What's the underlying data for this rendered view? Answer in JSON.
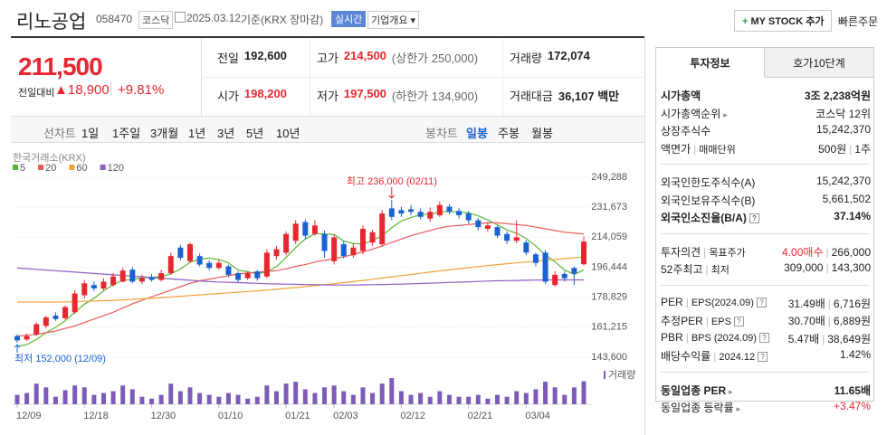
{
  "header": {
    "name": "리노공업",
    "code": "058470",
    "market": "코스닥",
    "date": "2025.03.12",
    "basis": "기준(KRX 장마감)",
    "realtime": "실시간",
    "company_info": "기업개요",
    "mystock": "MY STOCK 추가",
    "quick_order": "빠른주문"
  },
  "price": {
    "current": "211,500",
    "change_label": "전일대비",
    "change": "18,900",
    "change_rate": "+9.81%"
  },
  "quote": {
    "rows": [
      [
        {
          "label": "전일",
          "value": "192,600"
        },
        {
          "label": "고가",
          "value": "214,500",
          "note": "(상한가 250,000)",
          "red": true
        },
        {
          "label": "거래량",
          "value": "172,074"
        }
      ],
      [
        {
          "label": "시가",
          "value": "198,200",
          "red": true
        },
        {
          "label": "저가",
          "value": "197,500",
          "note": "(하한가 134,900)",
          "red": true
        },
        {
          "label": "거래대금",
          "value": "36,107 백만"
        }
      ]
    ]
  },
  "toolbar": {
    "line_chart": "선차트",
    "periods": [
      "1일",
      "1주일",
      "3개월",
      "1년",
      "3년",
      "5년",
      "10년"
    ],
    "candle_chart": "봉차트",
    "candle_periods": [
      "일봉",
      "주봉",
      "월봉"
    ]
  },
  "info_panel": {
    "tabs": [
      "투자정보",
      "호가10단계"
    ],
    "groups": [
      [
        {
          "label": [
            "시가총액"
          ],
          "value": [
            "3조 2,238억원"
          ],
          "bold": true
        },
        {
          "label": [
            "시가총액순위"
          ],
          "value": [
            "코스닥 12위"
          ],
          "link": true
        },
        {
          "label": [
            "상장주식수"
          ],
          "value": [
            "15,242,370"
          ]
        },
        {
          "label": [
            "액면가",
            "매매단위"
          ],
          "value": [
            "500원",
            "1주"
          ]
        }
      ],
      [
        {
          "label": [
            "외국인한도주식수(A)"
          ],
          "value": [
            "15,242,370"
          ]
        },
        {
          "label": [
            "외국인보유주식수(B)"
          ],
          "value": [
            "5,661,502"
          ]
        },
        {
          "label": [
            "외국인소진율(B/A)"
          ],
          "value": [
            "37.14%"
          ],
          "bold": true,
          "help": true
        }
      ],
      [
        {
          "label": [
            "투자의견",
            "목표주가"
          ],
          "value": [
            "4.00매수",
            "266,000"
          ],
          "red_first": true
        },
        {
          "label": [
            "52주최고",
            "최저"
          ],
          "value": [
            "309,000",
            "143,300"
          ]
        }
      ],
      [
        {
          "label": [
            "PER",
            "EPS(2024.09)"
          ],
          "value": [
            "31.49배",
            "6,716원"
          ],
          "help": true
        },
        {
          "label": [
            "추정PER",
            "EPS"
          ],
          "value": [
            "30.70배",
            "6,889원"
          ],
          "help": true
        },
        {
          "label": [
            "PBR",
            "BPS (2024.09)"
          ],
          "value": [
            "5.47배",
            "38,649원"
          ],
          "help": true
        },
        {
          "label": [
            "배당수익률",
            "2024.12"
          ],
          "value": [
            "1.42%"
          ],
          "help": true
        }
      ],
      [
        {
          "label": [
            "동일업종 PER"
          ],
          "value": [
            "11.65배"
          ],
          "bold": true,
          "link": true
        },
        {
          "label": [
            "동일업종 등락률"
          ],
          "value": [
            "+3.47%"
          ],
          "link": true,
          "red_first": true
        }
      ]
    ]
  },
  "chart_data": {
    "type": "candlestick",
    "source": "한국거래소(KRX)",
    "categories": [
      "12/09",
      null,
      null,
      null,
      null,
      null,
      null,
      "12/18",
      null,
      null,
      null,
      null,
      null,
      null,
      "12/30",
      null,
      null,
      null,
      null,
      null,
      null,
      "01/10",
      null,
      null,
      null,
      null,
      null,
      null,
      "01/21",
      null,
      null,
      null,
      null,
      "02/03",
      null,
      null,
      null,
      null,
      null,
      null,
      "02/12",
      null,
      null,
      null,
      null,
      null,
      null,
      "02/21",
      null,
      null,
      null,
      null,
      null,
      "03/04",
      null,
      null,
      null,
      null,
      null,
      null
    ],
    "open": [
      156000,
      154000,
      157000,
      162000,
      168000,
      166500,
      170000,
      180000,
      186000,
      184000,
      186000,
      188000,
      195000,
      188000,
      190500,
      189000,
      193000,
      208000,
      200000,
      203000,
      199000,
      196000,
      197000,
      193000,
      190000,
      194000,
      191000,
      203000,
      205000,
      212000,
      223000,
      216000,
      216000,
      200000,
      210000,
      203500,
      206000,
      211000,
      210000,
      231000,
      230000,
      230500,
      229000,
      225000,
      227000,
      232000,
      229500,
      228000,
      224000,
      219000,
      220000,
      216000,
      212000,
      211000,
      204000,
      205000,
      186000,
      192500,
      196000,
      198200
    ],
    "high": [
      157000,
      157500,
      164000,
      168000,
      170000,
      174000,
      183000,
      189000,
      188000,
      190000,
      193000,
      196000,
      196500,
      192000,
      192500,
      195000,
      205000,
      209500,
      211000,
      204500,
      200500,
      201000,
      198000,
      194000,
      194000,
      195000,
      207000,
      209000,
      217500,
      224000,
      224500,
      224000,
      218000,
      216000,
      212000,
      210500,
      221000,
      218500,
      230000,
      236000,
      232000,
      233000,
      231000,
      231500,
      235000,
      233500,
      231000,
      229500,
      225500,
      223000,
      221000,
      217500,
      224000,
      212500,
      205000,
      206500,
      194000,
      194000,
      197000,
      214500
    ],
    "low": [
      152000,
      153000,
      156000,
      160500,
      165000,
      165500,
      169000,
      178000,
      182500,
      183000,
      185000,
      187500,
      187000,
      186500,
      188000,
      188000,
      192000,
      200500,
      199000,
      197000,
      194500,
      195000,
      190500,
      187500,
      189000,
      188500,
      190000,
      201000,
      203500,
      210000,
      213000,
      215000,
      202000,
      198000,
      201500,
      202000,
      204000,
      209000,
      208500,
      224000,
      226000,
      227000,
      224500,
      223000,
      226000,
      227500,
      225000,
      222000,
      218000,
      217500,
      213500,
      210000,
      210500,
      203500,
      197000,
      186500,
      185000,
      188000,
      186000,
      197500
    ],
    "close": [
      153500,
      156000,
      163000,
      167000,
      166000,
      173000,
      181000,
      187000,
      184000,
      188000,
      191000,
      194500,
      188000,
      190000,
      189000,
      193000,
      203000,
      202000,
      210000,
      198000,
      196000,
      199000,
      192000,
      189000,
      193000,
      190000,
      205000,
      207000,
      216000,
      222000,
      215000,
      221000,
      206000,
      214000,
      203000,
      208000,
      219000,
      217000,
      228000,
      226000,
      228000,
      229000,
      226000,
      229000,
      233000,
      229000,
      227000,
      224000,
      220000,
      221000,
      215000,
      212000,
      214000,
      205000,
      199000,
      188000,
      192000,
      190000,
      192600,
      211500
    ],
    "up_color": "#e8262f",
    "down_color": "#1b62d1",
    "series": [
      {
        "name": "5",
        "color": "#5cb531",
        "values": [
          150000,
          151000,
          154000,
          158000,
          161100,
          165000,
          170000,
          174800,
          178200,
          182600,
          186200,
          188900,
          189100,
          190300,
          190500,
          190900,
          192600,
          195400,
          199400,
          201200,
          201800,
          201000,
          199000,
          194800,
          193800,
          192600,
          193800,
          196800,
          202200,
          208000,
          213000,
          216200,
          216000,
          215600,
          211800,
          210400,
          210000,
          212200,
          215000,
          219600,
          223600,
          225600,
          227400,
          227600,
          229000,
          229200,
          228800,
          228400,
          226600,
          224200,
          221400,
          218400,
          216400,
          213400,
          209000,
          203600,
          199600,
          194800,
          192300,
          194800
        ]
      },
      {
        "name": "20",
        "color": "#e85c5c",
        "values": [
          156000,
          156500,
          157000,
          158000,
          159000,
          160500,
          162000,
          164000,
          166000,
          168000,
          170000,
          172500,
          175000,
          177000,
          179000,
          181000,
          183000,
          185000,
          187000,
          188500,
          189500,
          190500,
          191500,
          192500,
          193000,
          193500,
          194000,
          194500,
          195500,
          197000,
          198000,
          199500,
          200500,
          201500,
          202500,
          204000,
          205500,
          207000,
          209000,
          211000,
          213000,
          215000,
          216500,
          218000,
          219500,
          220500,
          221000,
          221500,
          222000,
          222500,
          222500,
          222000,
          221500,
          221000,
          220000,
          219000,
          218000,
          217000,
          216500,
          216000
        ]
      },
      {
        "name": "60",
        "color": "#f2a23a",
        "values": [
          176000,
          176000,
          176000,
          176000,
          176000,
          176000,
          176200,
          176400,
          176600,
          176800,
          177000,
          177300,
          177600,
          177900,
          178200,
          178600,
          179000,
          179400,
          179800,
          180200,
          180600,
          181000,
          181400,
          181800,
          182200,
          182600,
          183000,
          183500,
          184000,
          184500,
          185000,
          185600,
          186200,
          186800,
          187400,
          188000,
          188700,
          189400,
          190100,
          190800,
          191500,
          192200,
          192900,
          193600,
          194300,
          195000,
          195600,
          196200,
          196800,
          197400,
          198000,
          198500,
          199000,
          199500,
          200000,
          200500,
          201000,
          201500,
          202000,
          202500
        ]
      },
      {
        "name": "120",
        "color": "#8e5fc1",
        "values": [
          196000,
          195600,
          195200,
          194800,
          194400,
          194000,
          193600,
          193200,
          192800,
          192400,
          192000,
          191600,
          191200,
          190800,
          190400,
          190000,
          189600,
          189200,
          188800,
          188400,
          188000,
          187800,
          187600,
          187400,
          187200,
          187000,
          186800,
          186600,
          186500,
          186400,
          186300,
          186200,
          186100,
          186000,
          186000,
          186000,
          186100,
          186200,
          186300,
          186400,
          186500,
          186700,
          186900,
          187100,
          187300,
          187500,
          187700,
          187900,
          188100,
          188300,
          188500,
          188600,
          188700,
          188800,
          188900,
          189000,
          189000,
          189000,
          189000,
          189000
        ]
      }
    ],
    "ylim": [
      143600,
      249288
    ],
    "yticks": [
      {
        "value": 143600,
        "label": "143,600"
      },
      {
        "value": 161215,
        "label": "161,215"
      },
      {
        "value": 178829,
        "label": "178,829"
      },
      {
        "value": 196444,
        "label": "196,444"
      },
      {
        "value": 214059,
        "label": "214,059"
      },
      {
        "value": 231673,
        "label": "231,673"
      },
      {
        "value": 249288,
        "label": "249,288"
      }
    ],
    "grid": true,
    "annotations": {
      "high": "최고 236,000 (02/11)",
      "low": "최저 152,000 (12/09)"
    },
    "volume": {
      "name": "거래량",
      "color": "#7d5bb8",
      "ylim": [
        0,
        250000
      ],
      "values": [
        70000,
        84000,
        154000,
        126000,
        56000,
        105000,
        140000,
        126000,
        70000,
        84000,
        98000,
        140000,
        112000,
        56000,
        42000,
        70000,
        154000,
        98000,
        126000,
        84000,
        70000,
        56000,
        84000,
        70000,
        42000,
        56000,
        140000,
        98000,
        154000,
        168000,
        112000,
        84000,
        126000,
        140000,
        98000,
        70000,
        126000,
        84000,
        154000,
        196000,
        98000,
        70000,
        84000,
        56000,
        98000,
        70000,
        56000,
        56000,
        70000,
        42000,
        70000,
        56000,
        98000,
        84000,
        112000,
        168000,
        126000,
        70000,
        126000,
        172074
      ]
    }
  }
}
